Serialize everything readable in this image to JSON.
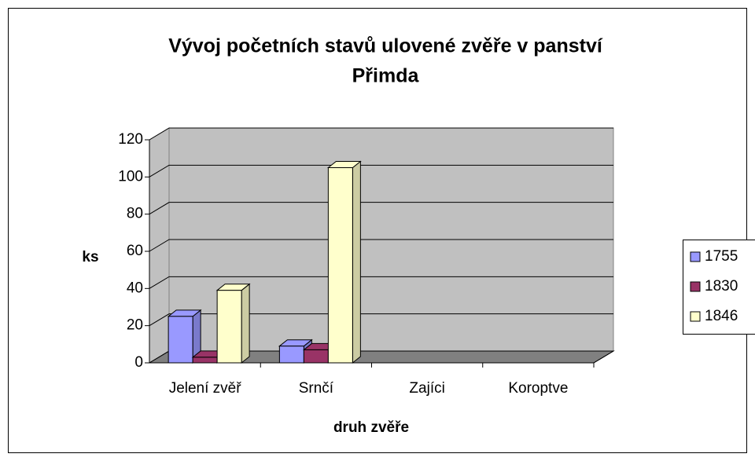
{
  "chart_data": {
    "type": "bar3d",
    "title": [
      "Vývoj početních stavů ulovené zvěře v panství",
      "Přimda"
    ],
    "x_label": "druh zvěře",
    "y_label": "ks",
    "categories": [
      "Jelení zvěř",
      "Srnčí",
      "Zajíci",
      "Koroptve"
    ],
    "series": [
      {
        "name": "1755",
        "color": "#9999ff",
        "values": [
          25,
          9,
          null,
          null
        ]
      },
      {
        "name": "1830",
        "color": "#993366",
        "values": [
          3,
          7,
          null,
          null
        ]
      },
      {
        "name": "1846",
        "color": "#ffffcc",
        "values": [
          39,
          105,
          null,
          null
        ]
      }
    ],
    "ylim": [
      0,
      120
    ],
    "yticks": [
      0,
      20,
      40,
      60,
      80,
      100,
      120
    ],
    "grid": true,
    "legend": "right"
  }
}
